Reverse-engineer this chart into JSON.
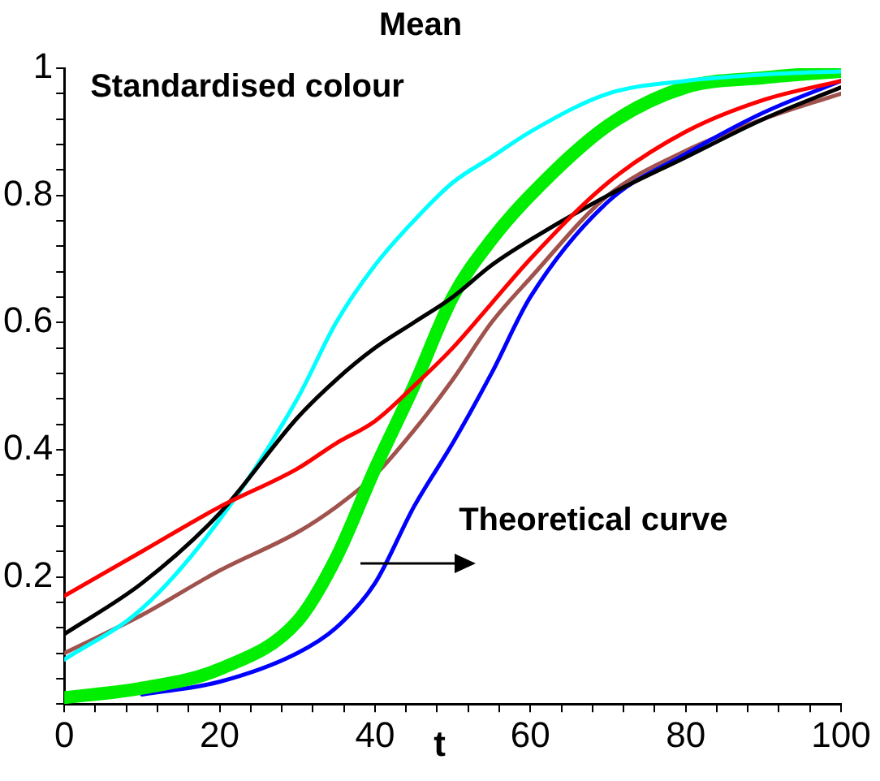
{
  "chart_data": {
    "type": "line",
    "title": "Mean",
    "xlabel": "t",
    "annotations": [
      "Standardised colour",
      "Theoretical curve"
    ],
    "x": [
      0,
      10,
      20,
      30,
      35,
      40,
      45,
      50,
      55,
      60,
      70,
      80,
      90,
      100
    ],
    "series": [
      {
        "color": "#ff0000",
        "values": [
          0.17,
          0.24,
          0.31,
          0.37,
          0.41,
          0.445,
          0.5,
          0.56,
          0.63,
          0.7,
          0.82,
          0.9,
          0.95,
          0.98
        ]
      },
      {
        "color": "#000000",
        "values": [
          0.11,
          0.19,
          0.3,
          0.45,
          0.51,
          0.56,
          0.6,
          0.64,
          0.69,
          0.73,
          0.8,
          0.86,
          0.92,
          0.97
        ]
      },
      {
        "color": "#00ffff",
        "values": [
          0.07,
          0.15,
          0.29,
          0.48,
          0.6,
          0.69,
          0.76,
          0.82,
          0.86,
          0.9,
          0.96,
          0.98,
          0.99,
          0.995
        ]
      },
      {
        "color": "#00ee00",
        "values": [
          0.01,
          0.025,
          0.055,
          0.13,
          0.23,
          0.37,
          0.5,
          0.64,
          0.73,
          0.8,
          0.91,
          0.97,
          0.985,
          0.995
        ]
      },
      {
        "color": "#0000ff",
        "values": [
          null,
          0.015,
          0.035,
          0.08,
          0.12,
          0.19,
          0.31,
          0.41,
          0.52,
          0.64,
          0.79,
          0.865,
          0.93,
          0.98
        ]
      },
      {
        "color": "#a0524d",
        "values": [
          0.08,
          0.14,
          0.21,
          0.27,
          0.31,
          0.36,
          0.43,
          0.51,
          0.6,
          0.67,
          0.8,
          0.87,
          0.92,
          0.96
        ]
      }
    ],
    "xlim": [
      0,
      100
    ],
    "xticks": [
      0,
      {
        "value": 4,
        "label": null
      },
      {
        "value": 8,
        "label": null
      },
      {
        "value": 12,
        "label": null
      },
      {
        "value": 16,
        "label": null
      },
      20,
      {
        "value": 24,
        "label": null
      },
      {
        "value": 28,
        "label": null
      },
      {
        "value": 32,
        "label": null
      },
      {
        "value": 36,
        "label": null
      },
      40,
      {
        "value": 44,
        "label": null
      },
      {
        "value": 48,
        "label": null
      },
      {
        "value": 52,
        "label": null
      },
      {
        "value": 56,
        "label": null
      },
      60,
      {
        "value": 64,
        "label": null
      },
      {
        "value": 68,
        "label": null
      },
      {
        "value": 72,
        "label": null
      },
      {
        "value": 76,
        "label": null
      },
      80,
      {
        "value": 84,
        "label": null
      },
      {
        "value": 88,
        "label": null
      },
      {
        "value": 92,
        "label": null
      },
      {
        "value": 96,
        "label": null
      },
      100
    ],
    "ylim": [
      0,
      1
    ],
    "yticks": [
      {
        "value": 0,
        "label": null
      },
      {
        "value": 0.04,
        "label": null
      },
      {
        "value": 0.08,
        "label": null
      },
      {
        "value": 0.12,
        "label": null
      },
      {
        "value": 0.16,
        "label": null
      },
      0.2,
      {
        "value": 0.24,
        "label": null
      },
      {
        "value": 0.28,
        "label": null
      },
      {
        "value": 0.32,
        "label": null
      },
      {
        "value": 0.36,
        "label": null
      },
      0.4,
      {
        "value": 0.44,
        "label": null
      },
      {
        "value": 0.48,
        "label": null
      },
      {
        "value": 0.52,
        "label": null
      },
      {
        "value": 0.56,
        "label": null
      },
      0.6,
      {
        "value": 0.64,
        "label": null
      },
      {
        "value": 0.68,
        "label": null
      },
      {
        "value": 0.72,
        "label": null
      },
      {
        "value": 0.76,
        "label": null
      },
      0.8,
      {
        "value": 0.84,
        "label": null
      },
      {
        "value": 0.88,
        "label": null
      },
      {
        "value": 0.92,
        "label": null
      },
      {
        "value": 0.96,
        "label": null
      },
      1
    ],
    "grid": false,
    "legend": false,
    "marker": "none",
    "line_style": "solid"
  }
}
